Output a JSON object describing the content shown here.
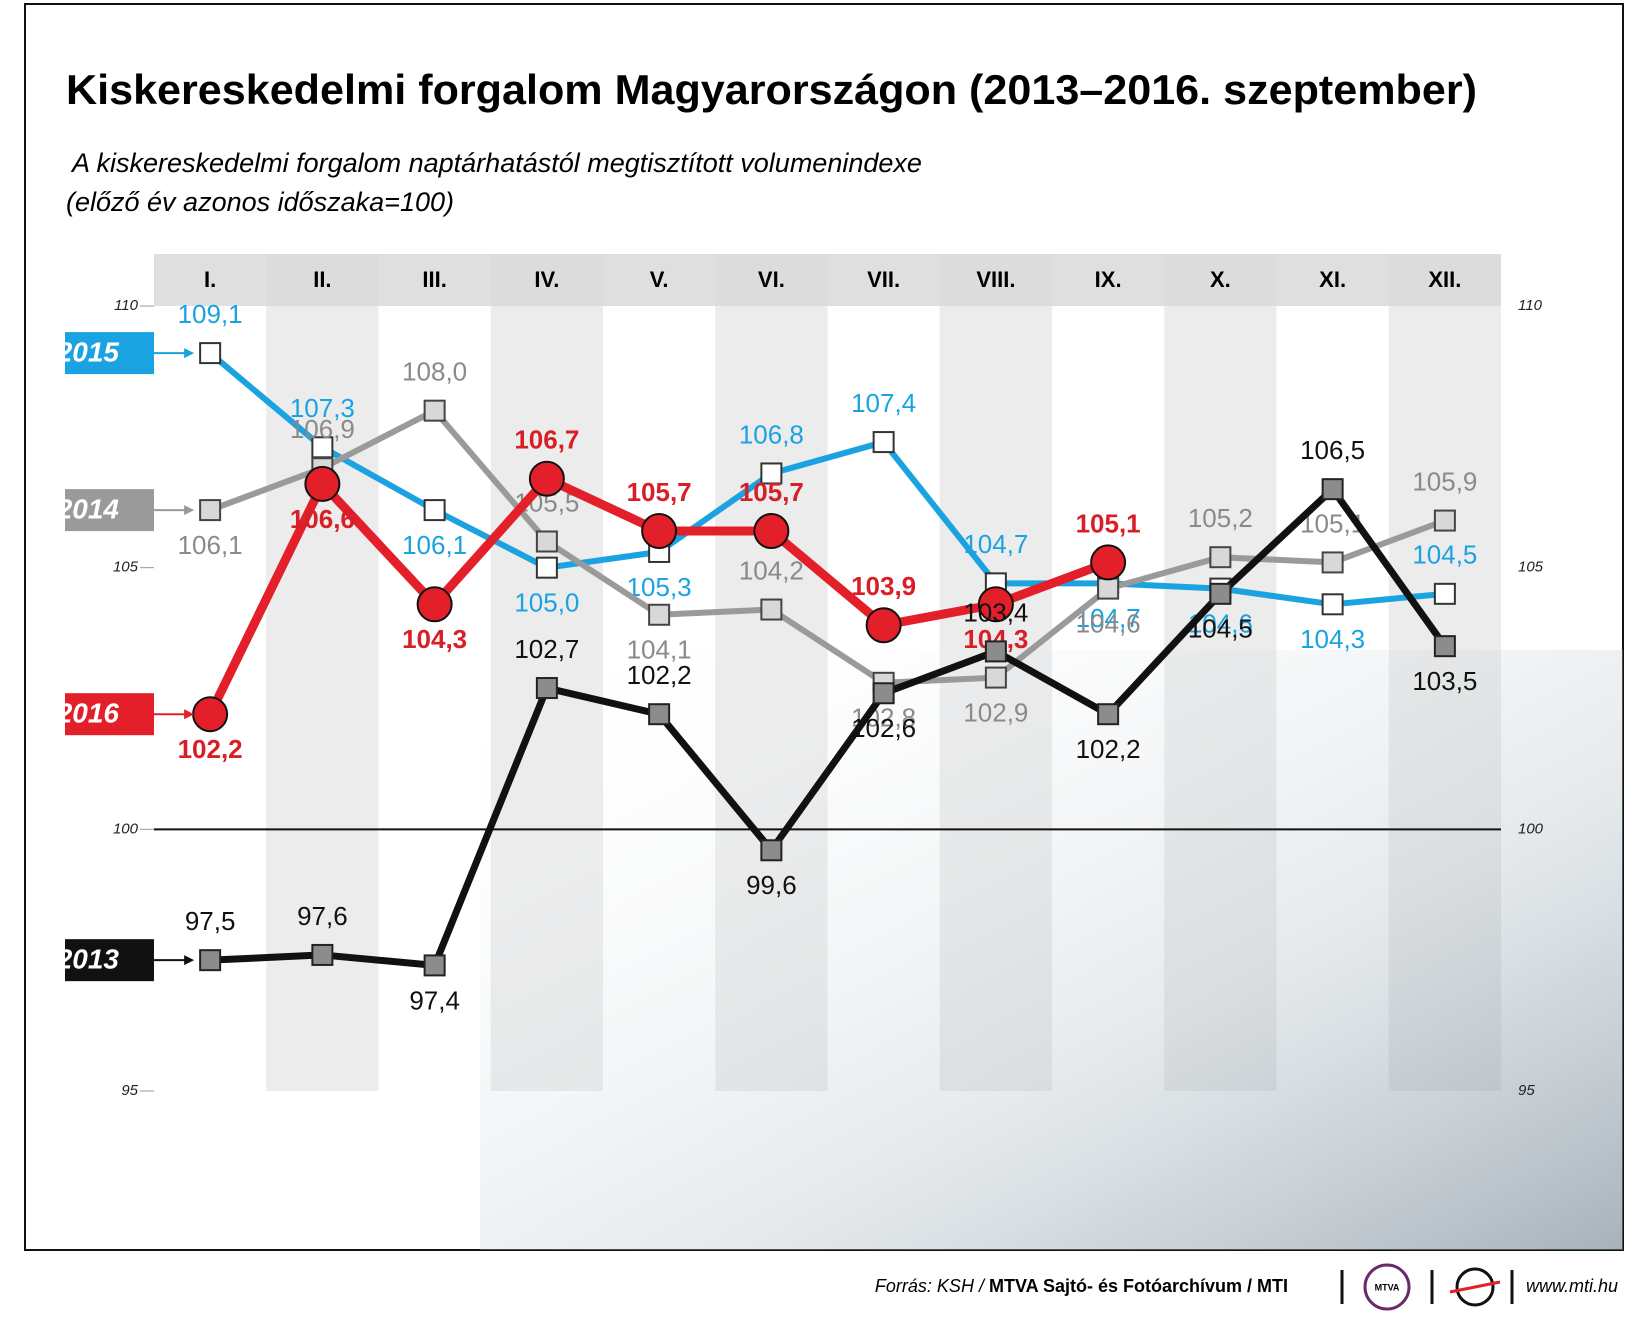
{
  "chart_data": {
    "type": "line",
    "title": "Kiskereskedelmi forgalom Magyarországon (2013–2016. szeptember)",
    "subtitle": [
      "A kiskereskedelmi forgalom naptárhatástól megtisztított volumenindexe",
      "(előző év azonos időszaka=100)"
    ],
    "categories": [
      "I.",
      "II.",
      "III.",
      "IV.",
      "V.",
      "VI.",
      "VII.",
      "VIII.",
      "IX.",
      "X.",
      "XI.",
      "XII."
    ],
    "ylim": [
      95,
      110
    ],
    "yticks": [
      95,
      100,
      105,
      110
    ],
    "reference_line": 100,
    "series": [
      {
        "name": "2015",
        "color": "#1aa3e0",
        "values": [
          109.1,
          107.3,
          106.1,
          105.0,
          105.3,
          106.8,
          107.4,
          104.7,
          104.7,
          104.6,
          104.3,
          104.5
        ],
        "value_labels": [
          "109,1",
          "107,3",
          "106,1",
          "105,0",
          "105,3",
          "106,8",
          "107,4",
          "104,7",
          "104,7",
          "104,6",
          "104,3",
          "104,5"
        ]
      },
      {
        "name": "2014",
        "color": "#9a9a9a",
        "values": [
          106.1,
          106.9,
          108.0,
          105.5,
          104.1,
          104.2,
          102.8,
          102.9,
          104.6,
          105.2,
          105.1,
          105.9
        ],
        "value_labels": [
          "106,1",
          "106,9",
          "108,0",
          "105,5",
          "104,1",
          "104,2",
          "102,8",
          "102,9",
          "104,6",
          "105,2",
          "105,1",
          "105,9"
        ]
      },
      {
        "name": "2016",
        "color": "#e3202a",
        "values": [
          102.2,
          106.6,
          104.3,
          106.7,
          105.7,
          105.7,
          103.9,
          104.3,
          105.1,
          null,
          null,
          null
        ],
        "value_labels": [
          "102,2",
          "106,6",
          "104,3",
          "106,7",
          "105,7",
          "105,7",
          "103,9",
          "104,3",
          "105,1",
          null,
          null,
          null
        ]
      },
      {
        "name": "2013",
        "color": "#111111",
        "values": [
          97.5,
          97.6,
          97.4,
          102.7,
          102.2,
          99.6,
          102.6,
          103.4,
          102.2,
          104.5,
          106.5,
          103.5
        ],
        "value_labels": [
          "97,5",
          "97,6",
          "97,4",
          "102,7",
          "102,2",
          "99,6",
          "102,6",
          "103,4",
          "102,2",
          "104,5",
          "106,5",
          "103,5"
        ]
      }
    ]
  },
  "footer": {
    "source_prefix": "Forrás: KSH /",
    "source": "MTVA Sajtó- és Fotóarchívum / MTI",
    "logo": "MTVA",
    "website": "www.mti.hu"
  }
}
